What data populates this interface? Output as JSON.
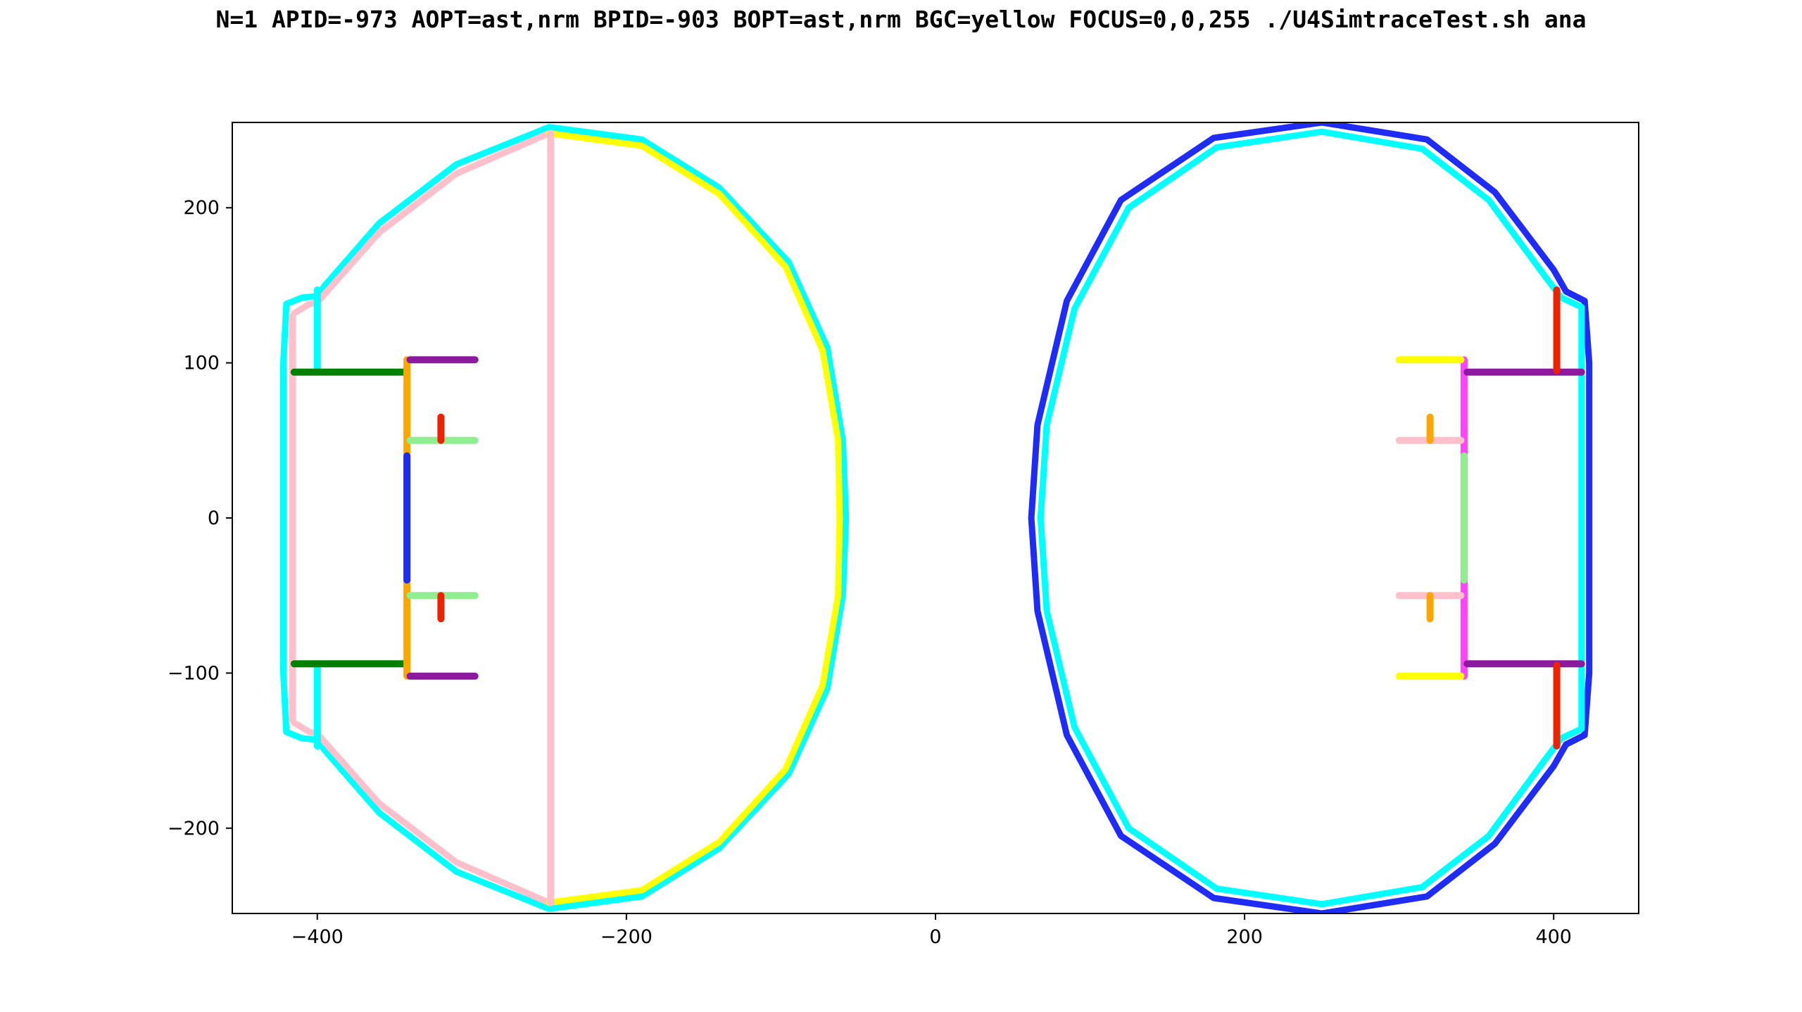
{
  "chart_data": {
    "type": "scatter",
    "title": "N=1 APID=-973 AOPT=ast,nrm BPID=-903 BOPT=ast,nrm BGC=yellow FOCUS=0,0,255 ./U4SimtraceTest.sh ana",
    "xlabel": "",
    "ylabel": "",
    "xlim": [
      -455,
      455
    ],
    "ylim": [
      -255,
      255
    ],
    "xticks": [
      -400,
      -200,
      0,
      200,
      400
    ],
    "yticks": [
      -200,
      -100,
      0,
      100,
      200
    ],
    "xtick_labels": [
      "−400",
      "−200",
      "0",
      "200",
      "400"
    ],
    "ytick_labels": [
      "−200",
      "−100",
      "0",
      "100",
      "200"
    ],
    "grid": false,
    "legend": "none",
    "series": [
      {
        "color": "#00ffff",
        "kind": "arc",
        "points": [
          [
            -420,
            138
          ],
          [
            -410,
            142
          ],
          [
            -400,
            143
          ],
          [
            -395,
            150
          ],
          [
            -360,
            190
          ],
          [
            -310,
            228
          ],
          [
            -250,
            252
          ],
          [
            -190,
            244
          ],
          [
            -140,
            213
          ],
          [
            -95,
            165
          ],
          [
            -70,
            110
          ],
          [
            -60,
            50
          ],
          [
            -58,
            0
          ],
          [
            -60,
            -50
          ],
          [
            -70,
            -110
          ],
          [
            -95,
            -165
          ],
          [
            -140,
            -213
          ],
          [
            -190,
            -244
          ],
          [
            -250,
            -252
          ],
          [
            -310,
            -228
          ],
          [
            -360,
            -190
          ],
          [
            -395,
            -150
          ],
          [
            -400,
            -143
          ],
          [
            -410,
            -142
          ],
          [
            -420,
            -138
          ],
          [
            -422,
            -100
          ],
          [
            -422,
            0
          ],
          [
            -422,
            100
          ],
          [
            -420,
            138
          ]
        ]
      },
      {
        "color": "#ffc0cb",
        "kind": "arc",
        "points": [
          [
            -415,
            132
          ],
          [
            -405,
            138
          ],
          [
            -400,
            139
          ],
          [
            -392,
            148
          ],
          [
            -360,
            184
          ],
          [
            -310,
            222
          ],
          [
            -250,
            248
          ]
        ]
      },
      {
        "color": "#ffc0cb",
        "kind": "arc",
        "points": [
          [
            -250,
            -248
          ],
          [
            -310,
            -222
          ],
          [
            -360,
            -184
          ],
          [
            -392,
            -148
          ],
          [
            -400,
            -139
          ],
          [
            -405,
            -138
          ],
          [
            -415,
            -132
          ]
        ]
      },
      {
        "color": "#ffc0cb",
        "kind": "segment",
        "points": [
          [
            -416,
            130
          ],
          [
            -416,
            -130
          ]
        ]
      },
      {
        "color": "#ffff00",
        "kind": "arc",
        "points": [
          [
            -250,
            248
          ],
          [
            -190,
            240
          ],
          [
            -140,
            209
          ],
          [
            -97,
            162
          ],
          [
            -73,
            108
          ],
          [
            -63,
            50
          ],
          [
            -62,
            0
          ],
          [
            -63,
            -50
          ],
          [
            -73,
            -108
          ],
          [
            -97,
            -162
          ],
          [
            -140,
            -209
          ],
          [
            -190,
            -240
          ],
          [
            -250,
            -248
          ]
        ]
      },
      {
        "color": "#ffc0cb",
        "kind": "segment",
        "points": [
          [
            -249,
            248
          ],
          [
            -249,
            -248
          ]
        ]
      },
      {
        "color": "#00ffff",
        "kind": "segment",
        "points": [
          [
            -400,
            147
          ],
          [
            -400,
            95
          ]
        ]
      },
      {
        "color": "#00ffff",
        "kind": "segment",
        "points": [
          [
            -400,
            -95
          ],
          [
            -400,
            -147
          ]
        ]
      },
      {
        "color": "#008000",
        "kind": "segment",
        "points": [
          [
            -415,
            94
          ],
          [
            -343,
            94
          ]
        ]
      },
      {
        "color": "#008000",
        "kind": "segment",
        "points": [
          [
            -415,
            -94
          ],
          [
            -343,
            -94
          ]
        ]
      },
      {
        "color": "#ffa500",
        "kind": "segment",
        "points": [
          [
            -342,
            102
          ],
          [
            -342,
            -102
          ]
        ]
      },
      {
        "color": "#1e2cf5",
        "kind": "segment",
        "points": [
          [
            -342,
            40
          ],
          [
            -342,
            -40
          ]
        ]
      },
      {
        "color": "#8b1a9e",
        "kind": "segment",
        "points": [
          [
            -340,
            102
          ],
          [
            -298,
            102
          ]
        ]
      },
      {
        "color": "#8b1a9e",
        "kind": "segment",
        "points": [
          [
            -340,
            -102
          ],
          [
            -298,
            -102
          ]
        ]
      },
      {
        "color": "#90ee90",
        "kind": "segment",
        "points": [
          [
            -340,
            50
          ],
          [
            -298,
            50
          ]
        ]
      },
      {
        "color": "#90ee90",
        "kind": "segment",
        "points": [
          [
            -340,
            -50
          ],
          [
            -298,
            -50
          ]
        ]
      },
      {
        "color": "#ee2200",
        "kind": "segment",
        "points": [
          [
            -320,
            65
          ],
          [
            -320,
            50
          ]
        ]
      },
      {
        "color": "#ee2200",
        "kind": "segment",
        "points": [
          [
            -320,
            -50
          ],
          [
            -320,
            -65
          ]
        ]
      },
      {
        "color": "#1e2cf5",
        "kind": "arc",
        "points": [
          [
            250,
            255
          ],
          [
            318,
            244
          ],
          [
            362,
            210
          ],
          [
            400,
            160
          ],
          [
            408,
            146
          ],
          [
            420,
            140
          ],
          [
            423,
            100
          ],
          [
            423,
            0
          ],
          [
            423,
            -100
          ],
          [
            420,
            -140
          ],
          [
            408,
            -146
          ],
          [
            400,
            -160
          ],
          [
            362,
            -210
          ],
          [
            318,
            -244
          ],
          [
            250,
            -255
          ],
          [
            180,
            -245
          ],
          [
            120,
            -205
          ],
          [
            85,
            -140
          ],
          [
            66,
            -60
          ],
          [
            62,
            0
          ],
          [
            66,
            60
          ],
          [
            85,
            140
          ],
          [
            120,
            205
          ],
          [
            180,
            245
          ],
          [
            250,
            255
          ]
        ]
      },
      {
        "color": "#00ffff",
        "kind": "arc",
        "points": [
          [
            250,
            249
          ],
          [
            315,
            238
          ],
          [
            358,
            205
          ],
          [
            395,
            155
          ],
          [
            405,
            142
          ],
          [
            418,
            136
          ],
          [
            418,
            100
          ],
          [
            418,
            0
          ],
          [
            418,
            -100
          ],
          [
            418,
            -136
          ],
          [
            405,
            -142
          ],
          [
            395,
            -155
          ],
          [
            358,
            -205
          ],
          [
            315,
            -238
          ],
          [
            250,
            -249
          ],
          [
            182,
            -239
          ],
          [
            125,
            -200
          ],
          [
            90,
            -135
          ],
          [
            72,
            -60
          ],
          [
            68,
            0
          ],
          [
            72,
            60
          ],
          [
            90,
            135
          ],
          [
            125,
            200
          ],
          [
            182,
            239
          ],
          [
            250,
            249
          ]
        ]
      },
      {
        "color": "#ff44ff",
        "kind": "segment",
        "points": [
          [
            342,
            102
          ],
          [
            342,
            -102
          ]
        ]
      },
      {
        "color": "#90ee90",
        "kind": "segment",
        "points": [
          [
            342,
            40
          ],
          [
            342,
            -40
          ]
        ]
      },
      {
        "color": "#8b1a9e",
        "kind": "segment",
        "points": [
          [
            344,
            94
          ],
          [
            418,
            94
          ]
        ]
      },
      {
        "color": "#8b1a9e",
        "kind": "segment",
        "points": [
          [
            344,
            -94
          ],
          [
            418,
            -94
          ]
        ]
      },
      {
        "color": "#ee2200",
        "kind": "segment",
        "points": [
          [
            402,
            147
          ],
          [
            402,
            95
          ]
        ]
      },
      {
        "color": "#ee2200",
        "kind": "segment",
        "points": [
          [
            402,
            -95
          ],
          [
            402,
            -147
          ]
        ]
      },
      {
        "color": "#ffff00",
        "kind": "segment",
        "points": [
          [
            300,
            102
          ],
          [
            340,
            102
          ]
        ]
      },
      {
        "color": "#ffff00",
        "kind": "segment",
        "points": [
          [
            300,
            -102
          ],
          [
            340,
            -102
          ]
        ]
      },
      {
        "color": "#ffc0cb",
        "kind": "segment",
        "points": [
          [
            300,
            50
          ],
          [
            340,
            50
          ]
        ]
      },
      {
        "color": "#ffc0cb",
        "kind": "segment",
        "points": [
          [
            300,
            -50
          ],
          [
            340,
            -50
          ]
        ]
      },
      {
        "color": "#ffa500",
        "kind": "segment",
        "points": [
          [
            320,
            65
          ],
          [
            320,
            50
          ]
        ]
      },
      {
        "color": "#ffa500",
        "kind": "segment",
        "points": [
          [
            320,
            -50
          ],
          [
            320,
            -65
          ]
        ]
      }
    ]
  }
}
